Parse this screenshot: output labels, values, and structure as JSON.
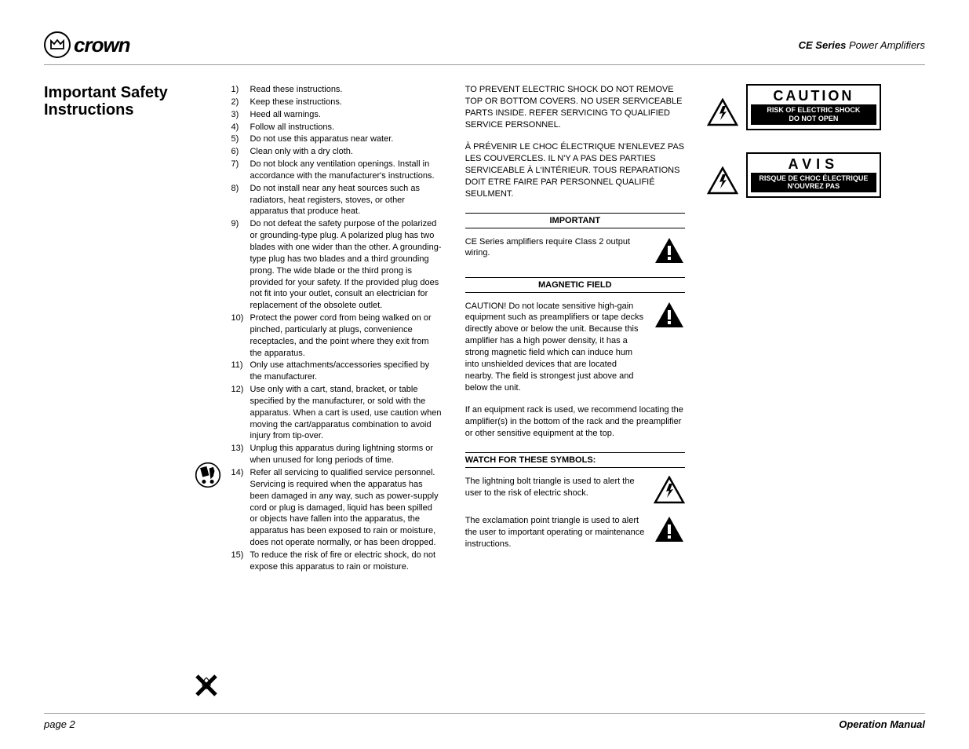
{
  "brand_text": "crown",
  "doc_title_bold": "CE Series",
  "doc_title_rest": " Power Amplifiers",
  "section_title_line1": "Important Safety",
  "section_title_line2": "Instructions",
  "instructions": [
    {
      "n": "1)",
      "t": "Read these instructions."
    },
    {
      "n": "2)",
      "t": "Keep these instructions."
    },
    {
      "n": "3)",
      "t": "Heed all warnings."
    },
    {
      "n": "4)",
      "t": "Follow all instructions."
    },
    {
      "n": "5)",
      "t": "Do not use this apparatus near water."
    },
    {
      "n": "6)",
      "t": "Clean only with a dry cloth."
    },
    {
      "n": "7)",
      "t": "Do not block any ventilation openings. Install in accordance with the manufacturer's instructions."
    },
    {
      "n": "8)",
      "t": "Do not install near any heat sources such as radiators, heat registers, stoves, or other apparatus that produce heat."
    },
    {
      "n": "9)",
      "t": "Do not defeat the safety purpose of the polarized or grounding-type plug. A polarized plug has two blades with one wider than the other. A grounding-type plug has two blades and a third grounding prong. The wide blade or the third prong is provided for your safety. If the provided plug does not fit into your outlet, consult an electrician for replacement of the obsolete outlet."
    },
    {
      "n": "10)",
      "t": "Protect the power cord from being walked on or pinched, particularly at plugs, convenience receptacles, and the point where they exit from the apparatus."
    },
    {
      "n": "11)",
      "t": "Only use attachments/accessories specified by the manufacturer."
    },
    {
      "n": "12)",
      "t": "Use only with a cart, stand, bracket, or table specified by the manufacturer, or sold with the apparatus. When a cart is used, use caution when moving the cart/apparatus combination to avoid injury from tip-over."
    },
    {
      "n": "13)",
      "t": "Unplug this apparatus during lightning storms or when unused for long periods of time."
    },
    {
      "n": "14)",
      "t": "Refer all servicing to qualified service personnel. Servicing is required when the apparatus has been damaged in any way, such as power-supply cord or plug is damaged, liquid has been spilled or objects have fallen into the apparatus, the apparatus has been exposed to rain or moisture, does not operate normally, or has been dropped."
    },
    {
      "n": "15)",
      "t": "To reduce the risk of fire or electric shock, do not expose this apparatus to rain or moisture."
    }
  ],
  "shock_en": "TO PREVENT ELECTRIC SHOCK DO NOT REMOVE TOP OR BOTTOM COVERS. NO USER SERVICEABLE PARTS INSIDE. REFER SERVICING TO QUALIFIED SERVICE PERSONNEL.",
  "shock_fr": "À PRÉVENIR LE CHOC ÉLECTRIQUE N'ENLEVEZ PAS LES COUVERCLES. IL N'Y A PAS DES PARTIES SERVICEABLE À L'INTÉRIEUR. TOUS REPARATIONS DOIT ETRE FAIRE PAR PERSONNEL QUALIFIÉ SEULMENT.",
  "hdr_important": "IMPORTANT",
  "important_text": "CE Series amplifiers require Class 2 output wiring.",
  "hdr_magnetic": "MAGNETIC FIELD",
  "magnetic_p1": "CAUTION!  Do not locate sensitive high-gain equipment such as preamplifiers or tape decks directly above or below the unit. Because this amplifier has a high power density, it has a strong magnetic field which can induce hum into unshielded devices that are located nearby. The field is strongest just above and below the unit.",
  "magnetic_p2": "If an equipment rack is used, we recommend locating the amplifier(s) in the bottom of the rack and the preamplifier or other sensitive equipment at the top.",
  "hdr_symbols": "WATCH FOR THESE SYMBOLS:",
  "symbol_bolt": "The lightning bolt triangle is used to alert the user to the risk of electric shock.",
  "symbol_excl": "The exclamation point triangle is used to alert the user to important operating or maintenance instructions.",
  "caution_en_title": "CAUTION",
  "caution_en_sub1": "RISK OF ELECTRIC SHOCK",
  "caution_en_sub2": "DO NOT OPEN",
  "caution_fr_title": "AVIS",
  "caution_fr_sub1": "RISQUE DE CHOC ÉLECTRIQUE",
  "caution_fr_sub2": "N'OUVREZ PAS",
  "footer_left": "page 2",
  "footer_right": "Operation Manual",
  "colors": {
    "text": "#000000",
    "bg": "#ffffff",
    "rule": "#999999"
  }
}
